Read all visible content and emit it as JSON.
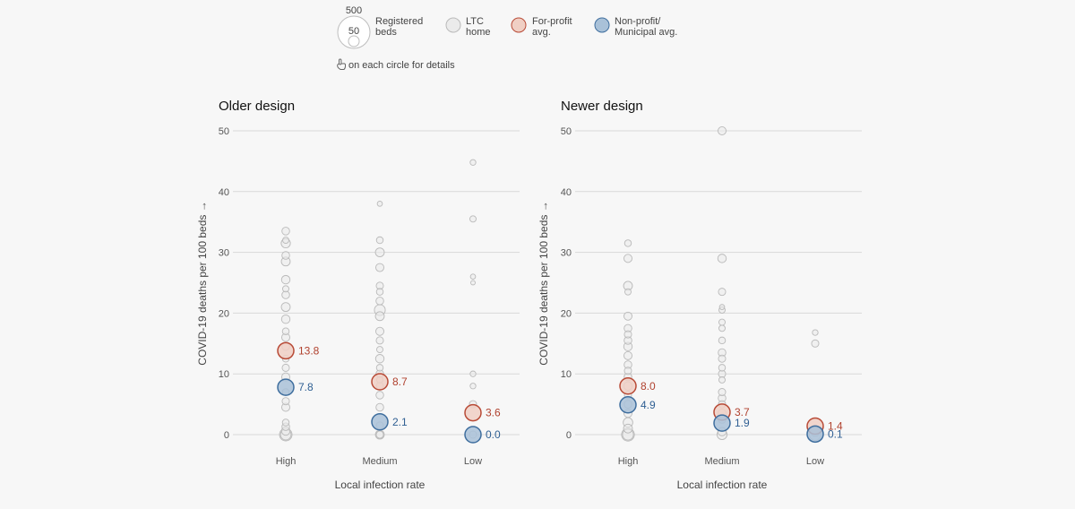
{
  "colors": {
    "background": "#f7f7f7",
    "ltc_fill": "#ebebeb",
    "ltc_stroke": "#b9b9b9",
    "forprofit_fill": "#f0cfc4",
    "forprofit_stroke": "#b84a36",
    "forprofit_text": "#b0412e",
    "nonprofit_fill": "#a9c1d8",
    "nonprofit_stroke": "#3f6e9e",
    "nonprofit_text": "#2f5f93",
    "grid": "#d9d9d9"
  },
  "legend": {
    "size_large": "500",
    "size_small": "50",
    "size_label_line1": "Registered",
    "size_label_line2": "beds",
    "ltc_line1": "LTC",
    "ltc_line2": "home",
    "forprofit_line1": "For-profit",
    "forprofit_line2": "avg.",
    "nonprofit_line1": "Non-profit/",
    "nonprofit_line2": "Municipal avg.",
    "hint_icon": "pointer-hand-icon",
    "hint": "on each circle for details"
  },
  "chart_data": [
    {
      "type": "scatter",
      "title": "Older design",
      "ylabel": "COVID-19 deaths per 100 beds →",
      "xlabel": "Local infection rate",
      "categories": [
        "High",
        "Medium",
        "Low"
      ],
      "ylim": [
        0,
        50
      ],
      "yticks": [
        0,
        10,
        20,
        30,
        40,
        50
      ],
      "homes": [
        [
          0,
          0,
          240
        ],
        [
          0,
          0,
          170
        ],
        [
          0,
          0.6,
          110
        ],
        [
          0,
          1.3,
          90
        ],
        [
          0,
          2,
          70
        ],
        [
          0,
          4.5,
          100
        ],
        [
          0,
          5.5,
          80
        ],
        [
          0,
          7,
          70
        ],
        [
          0,
          9.5,
          100
        ],
        [
          0,
          11,
          80
        ],
        [
          0,
          12.5,
          70
        ],
        [
          0,
          14.5,
          90
        ],
        [
          0,
          16,
          100
        ],
        [
          0,
          17,
          70
        ],
        [
          0,
          19,
          110
        ],
        [
          0,
          21,
          120
        ],
        [
          0,
          23,
          90
        ],
        [
          0,
          24,
          60
        ],
        [
          0,
          25.5,
          110
        ],
        [
          0,
          28.5,
          120
        ],
        [
          0,
          29.5,
          90
        ],
        [
          0,
          31.5,
          130
        ],
        [
          0,
          32,
          60
        ],
        [
          0,
          33.5,
          90
        ],
        [
          1,
          0,
          120
        ],
        [
          1,
          0,
          80
        ],
        [
          1,
          1.5,
          80
        ],
        [
          1,
          4.5,
          90
        ],
        [
          1,
          6.5,
          90
        ],
        [
          1,
          8,
          80
        ],
        [
          1,
          9,
          60
        ],
        [
          1,
          10,
          90
        ],
        [
          1,
          11,
          70
        ],
        [
          1,
          12.5,
          110
        ],
        [
          1,
          14,
          60
        ],
        [
          1,
          15.5,
          80
        ],
        [
          1,
          17,
          100
        ],
        [
          1,
          19.5,
          120
        ],
        [
          1,
          20.5,
          180
        ],
        [
          1,
          22,
          90
        ],
        [
          1,
          23.5,
          70
        ],
        [
          1,
          24.5,
          80
        ],
        [
          1,
          27.5,
          100
        ],
        [
          1,
          30,
          120
        ],
        [
          1,
          32,
          70
        ],
        [
          1,
          38,
          40
        ],
        [
          2,
          0,
          80
        ],
        [
          2,
          5,
          80
        ],
        [
          2,
          8,
          50
        ],
        [
          2,
          10,
          50
        ],
        [
          2,
          25,
          30
        ],
        [
          2,
          26,
          40
        ],
        [
          2,
          35.5,
          60
        ],
        [
          2,
          44.8,
          50
        ]
      ],
      "forprofit": [
        13.8,
        8.7,
        3.6
      ],
      "nonprofit": [
        7.8,
        2.1,
        0.0
      ],
      "forprofit_labels": [
        "13.8",
        "8.7",
        "3.6"
      ],
      "nonprofit_labels": [
        "7.8",
        "2.1",
        "0.0"
      ]
    },
    {
      "type": "scatter",
      "title": "Newer design",
      "ylabel": "COVID-19 deaths per 100 beds →",
      "xlabel": "Local infection rate",
      "categories": [
        "High",
        "Medium",
        "Low"
      ],
      "ylim": [
        0,
        50
      ],
      "yticks": [
        0,
        10,
        20,
        30,
        40,
        50
      ],
      "homes": [
        [
          0,
          0,
          250
        ],
        [
          0,
          0,
          180
        ],
        [
          0,
          1,
          120
        ],
        [
          0,
          2,
          140
        ],
        [
          0,
          3.5,
          100
        ],
        [
          0,
          5,
          90
        ],
        [
          0,
          6.5,
          80
        ],
        [
          0,
          8,
          110
        ],
        [
          0,
          9.5,
          90
        ],
        [
          0,
          10.5,
          80
        ],
        [
          0,
          11.5,
          90
        ],
        [
          0,
          13,
          100
        ],
        [
          0,
          14.5,
          110
        ],
        [
          0,
          15.5,
          90
        ],
        [
          0,
          16.5,
          80
        ],
        [
          0,
          17.5,
          90
        ],
        [
          0,
          19.5,
          100
        ],
        [
          0,
          23.5,
          60
        ],
        [
          0,
          24.5,
          120
        ],
        [
          0,
          29,
          100
        ],
        [
          0,
          31.5,
          70
        ],
        [
          1,
          0,
          150
        ],
        [
          1,
          0.5,
          110
        ],
        [
          1,
          2.5,
          90
        ],
        [
          1,
          3.5,
          110
        ],
        [
          1,
          5,
          80
        ],
        [
          1,
          6,
          90
        ],
        [
          1,
          7,
          80
        ],
        [
          1,
          9,
          60
        ],
        [
          1,
          10,
          80
        ],
        [
          1,
          11,
          70
        ],
        [
          1,
          12.5,
          80
        ],
        [
          1,
          13.5,
          90
        ],
        [
          1,
          15.5,
          70
        ],
        [
          1,
          17.5,
          60
        ],
        [
          1,
          18.5,
          60
        ],
        [
          1,
          20.5,
          60
        ],
        [
          1,
          21,
          40
        ],
        [
          1,
          23.5,
          80
        ],
        [
          1,
          29,
          110
        ],
        [
          1,
          50,
          100
        ],
        [
          2,
          0,
          200
        ],
        [
          2,
          0.5,
          130
        ],
        [
          2,
          15,
          80
        ],
        [
          2,
          16.8,
          50
        ]
      ],
      "forprofit": [
        8.0,
        3.7,
        1.4
      ],
      "nonprofit": [
        4.9,
        1.9,
        0.1
      ],
      "forprofit_labels": [
        "8.0",
        "3.7",
        "1.4"
      ],
      "nonprofit_labels": [
        "4.9",
        "1.9",
        "0.1"
      ]
    }
  ]
}
